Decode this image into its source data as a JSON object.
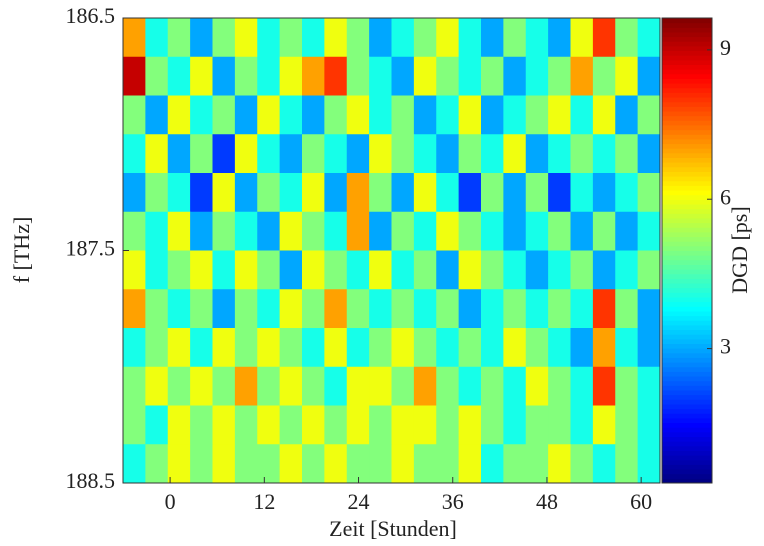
{
  "chart_data": {
    "type": "heatmap",
    "xlabel": "Zeit [Stunden]",
    "ylabel": "f [THz]",
    "colorbar_label": "DGD [ps]",
    "xlim": [
      -6,
      62.4
    ],
    "xticks": [
      0,
      12,
      24,
      36,
      48,
      60
    ],
    "ylim": [
      186.5,
      188.5
    ],
    "yticks": [
      186.5,
      187.5,
      188.5
    ],
    "y_reversed": true,
    "clim": [
      0.3,
      9.64
    ],
    "cticks": [
      3,
      6,
      9
    ],
    "colormap": "jet",
    "z": [
      [
        7,
        4,
        5,
        3,
        5,
        6,
        4,
        5,
        4,
        6,
        5,
        3,
        4,
        5,
        6,
        4,
        3,
        5,
        4,
        3,
        6,
        8,
        5,
        4
      ],
      [
        9,
        5,
        4,
        6,
        3,
        5,
        4,
        6,
        7,
        8,
        5,
        4,
        3,
        6,
        5,
        4,
        5,
        3,
        4,
        5,
        7,
        5,
        6,
        3
      ],
      [
        5,
        3,
        6,
        4,
        5,
        3,
        6,
        4,
        3,
        5,
        6,
        4,
        5,
        3,
        4,
        6,
        3,
        4,
        5,
        6,
        4,
        6,
        3,
        5
      ],
      [
        4,
        6,
        3,
        5,
        2,
        6,
        4,
        3,
        5,
        4,
        3,
        6,
        5,
        4,
        3,
        5,
        4,
        6,
        3,
        4,
        5,
        4,
        5,
        3
      ],
      [
        3,
        5,
        4,
        2,
        6,
        3,
        5,
        4,
        6,
        3,
        7,
        5,
        3,
        6,
        4,
        2,
        5,
        3,
        5,
        2,
        4,
        3,
        4,
        5
      ],
      [
        5,
        4,
        6,
        3,
        5,
        4,
        3,
        6,
        5,
        4,
        7,
        3,
        5,
        4,
        6,
        5,
        4,
        3,
        4,
        5,
        3,
        5,
        3,
        4
      ],
      [
        6,
        4,
        5,
        6,
        4,
        6,
        5,
        3,
        6,
        5,
        4,
        6,
        4,
        5,
        3,
        6,
        5,
        4,
        3,
        4,
        5,
        3,
        4,
        5
      ],
      [
        7,
        5,
        4,
        5,
        3,
        5,
        4,
        6,
        5,
        7,
        5,
        4,
        5,
        4,
        5,
        3,
        4,
        5,
        4,
        5,
        4,
        8,
        5,
        3
      ],
      [
        4,
        5,
        6,
        4,
        6,
        5,
        6,
        5,
        4,
        6,
        4,
        5,
        6,
        5,
        4,
        5,
        4,
        6,
        5,
        4,
        3,
        7,
        4,
        3
      ],
      [
        5,
        6,
        5,
        6,
        5,
        7,
        5,
        6,
        5,
        4,
        6,
        6,
        5,
        7,
        5,
        4,
        5,
        4,
        6,
        5,
        4,
        8,
        5,
        4
      ],
      [
        5,
        4,
        6,
        5,
        6,
        5,
        6,
        5,
        6,
        5,
        6,
        5,
        6,
        6,
        5,
        6,
        5,
        4,
        5,
        5,
        4,
        6,
        5,
        4
      ],
      [
        4,
        5,
        6,
        5,
        6,
        5,
        5,
        6,
        5,
        6,
        5,
        5,
        6,
        5,
        5,
        6,
        4,
        5,
        5,
        6,
        5,
        4,
        5,
        4
      ]
    ]
  }
}
